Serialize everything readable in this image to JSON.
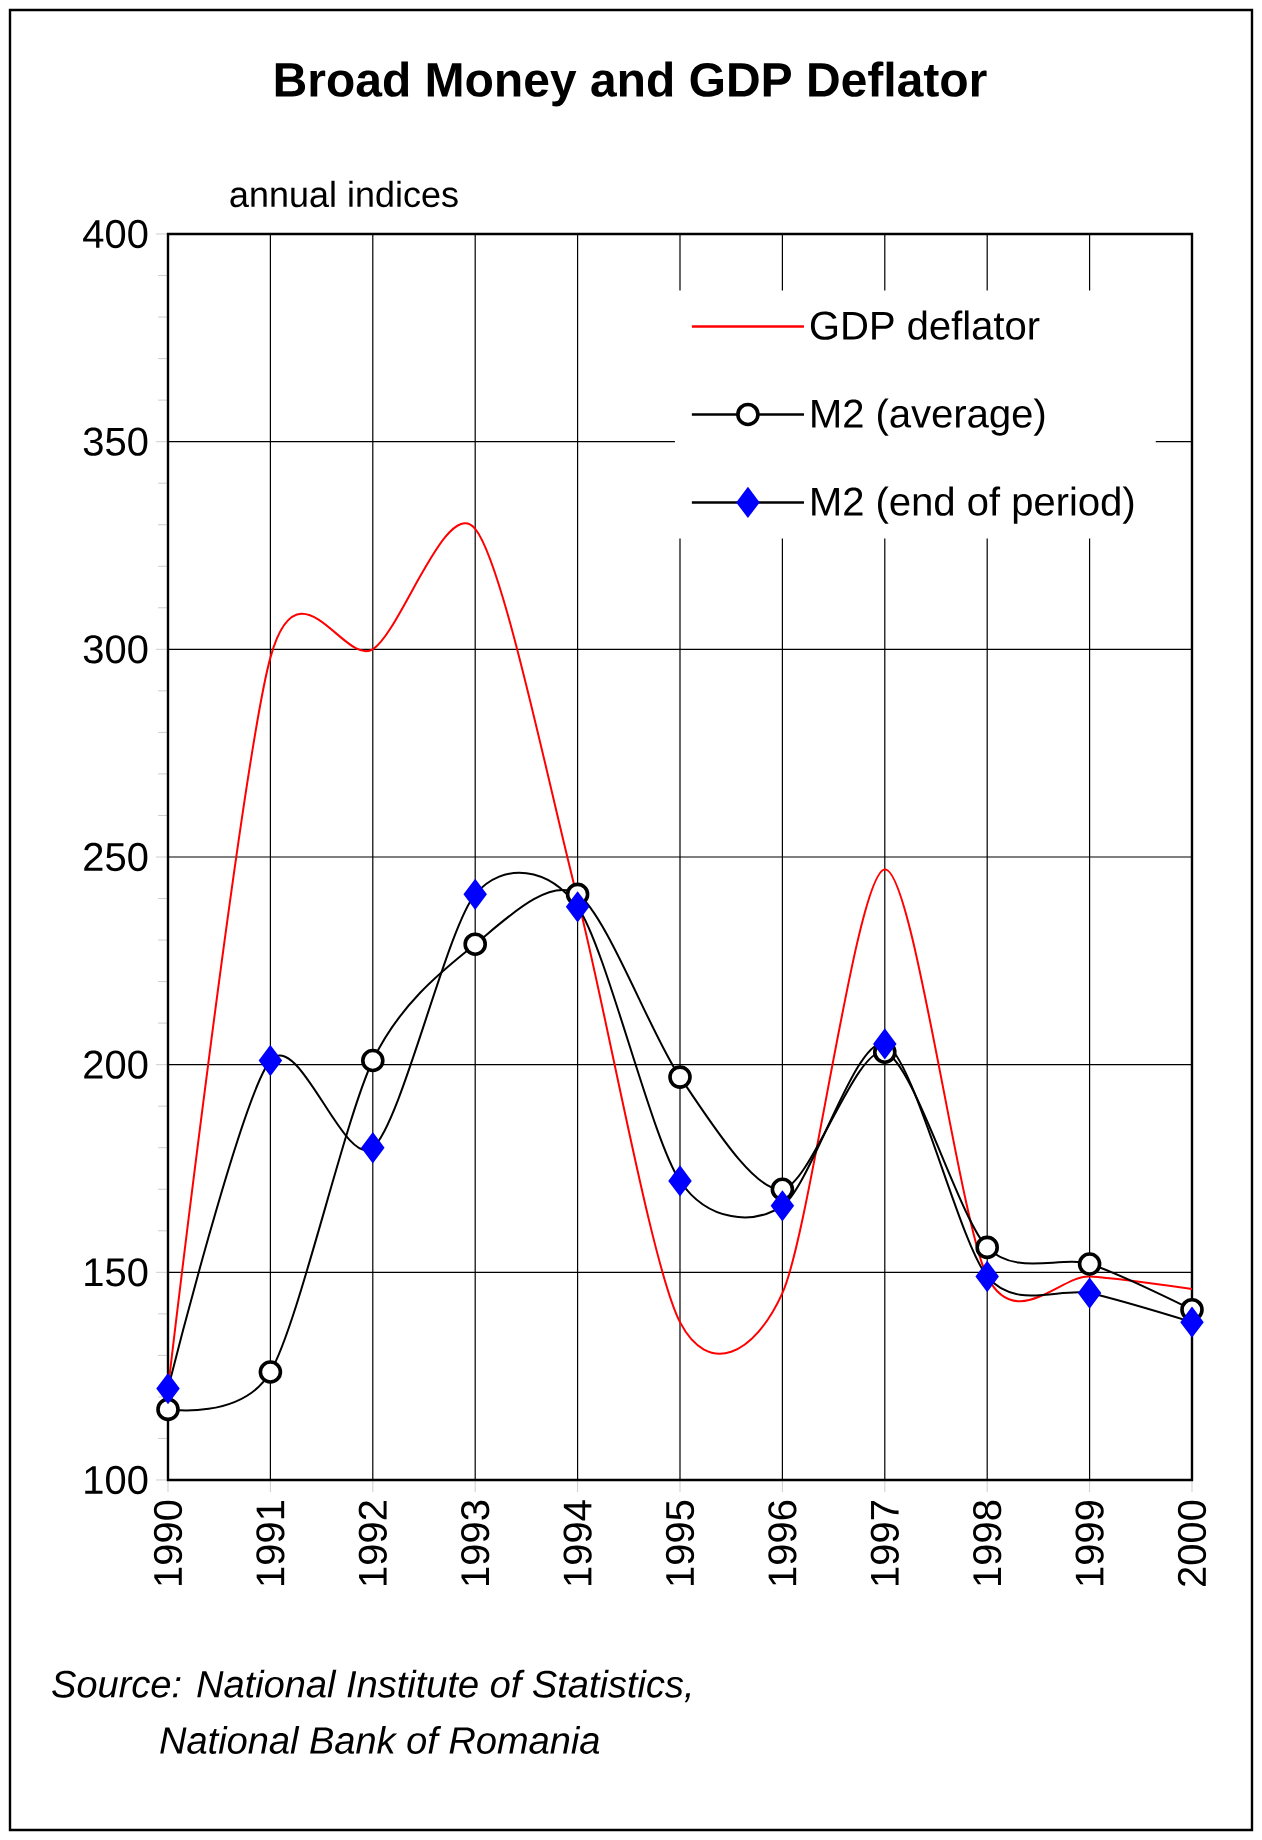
{
  "chart_data": {
    "type": "line",
    "title": "Broad Money and GDP Deflator",
    "ylabel": "annual indices",
    "x": [
      1990,
      1991,
      1992,
      1993,
      1994,
      1995,
      1996,
      1997,
      1998,
      1999,
      2000
    ],
    "xlim": [
      1990,
      2000
    ],
    "xticks": [
      1990,
      1991,
      1992,
      1993,
      1994,
      1995,
      1996,
      1997,
      1998,
      1999,
      2000
    ],
    "ylim": [
      100,
      400
    ],
    "yticks": [
      100,
      150,
      200,
      250,
      300,
      350,
      400
    ],
    "grid": true,
    "legend": "top right",
    "line_style": "solid",
    "series": [
      {
        "name": "GDP deflator",
        "color": "#ff0000",
        "marker": "none",
        "values": [
          122,
          298,
          300,
          329,
          240,
          138,
          145,
          247,
          149,
          149,
          146
        ]
      },
      {
        "name": "M2 (average)",
        "color": "#000000",
        "marker": "circle",
        "values": [
          117,
          126,
          201,
          229,
          241,
          197,
          170,
          203,
          156,
          152,
          141
        ]
      },
      {
        "name": "M2 (end of period)",
        "color": "#0000ff",
        "marker": "diamond",
        "values": [
          122,
          201,
          180,
          241,
          238,
          172,
          166,
          205,
          149,
          145,
          138
        ]
      }
    ],
    "annotations": [
      "Source: National Institute of Statistics,",
      "National Bank of Romania"
    ]
  }
}
